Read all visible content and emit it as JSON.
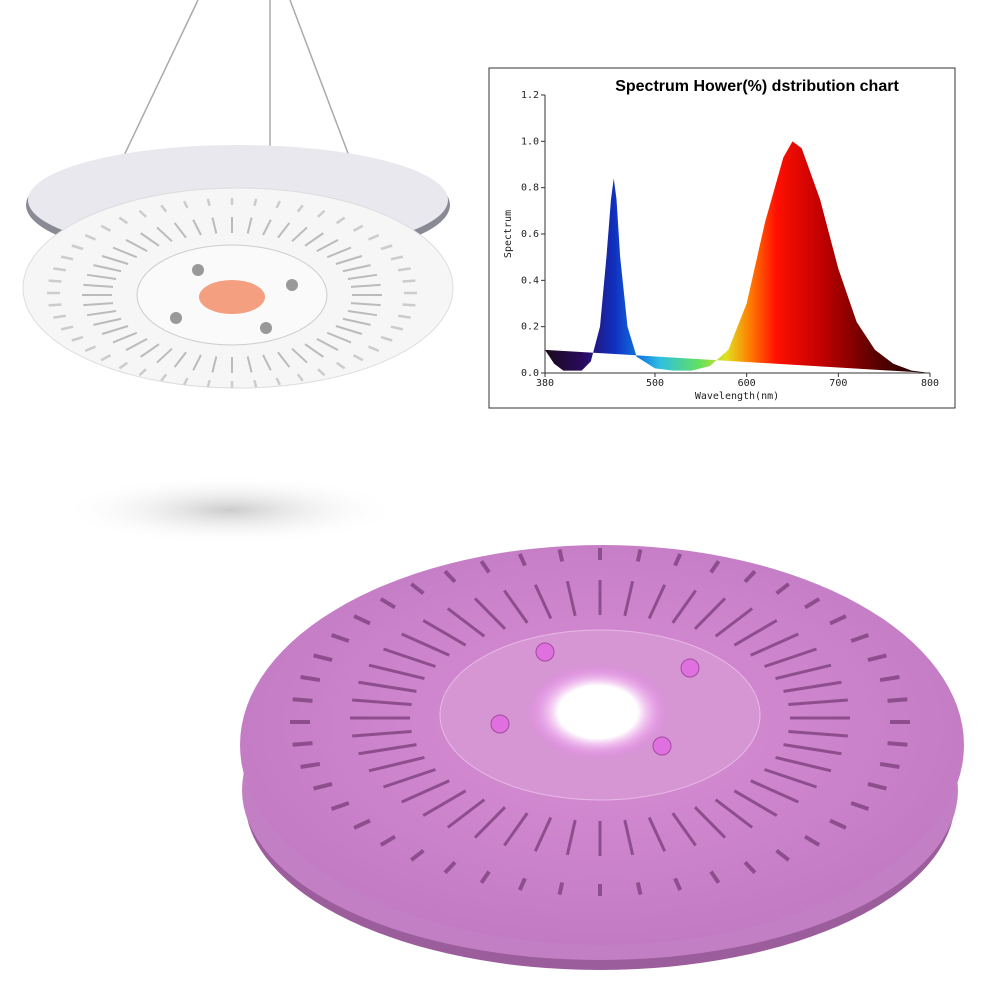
{
  "chart_data": {
    "type": "area",
    "title": "Spectrum Hower(%) dstribution chart",
    "x_label": "Wavelength(nm)",
    "y_label": "Spectrum",
    "x": [
      380,
      390,
      400,
      420,
      430,
      440,
      447,
      452,
      455,
      458,
      462,
      470,
      480,
      500,
      520,
      540,
      560,
      580,
      600,
      620,
      640,
      650,
      660,
      680,
      700,
      720,
      740,
      760,
      780,
      800
    ],
    "y": [
      0.1,
      0.04,
      0.01,
      0.01,
      0.05,
      0.2,
      0.5,
      0.75,
      0.84,
      0.75,
      0.5,
      0.2,
      0.07,
      0.02,
      0.01,
      0.01,
      0.03,
      0.1,
      0.3,
      0.65,
      0.93,
      1.0,
      0.97,
      0.75,
      0.45,
      0.22,
      0.1,
      0.04,
      0.01,
      0
    ],
    "xlim": [
      380,
      800
    ],
    "ylim": [
      0,
      1.2
    ],
    "xticks": [
      380,
      500,
      600,
      700,
      800
    ],
    "yticks": [
      {
        "value": 0,
        "label": "0.0"
      },
      0.2,
      0.4,
      0.6,
      0.8,
      {
        "value": 1,
        "label": "1.0"
      },
      1.2
    ]
  }
}
